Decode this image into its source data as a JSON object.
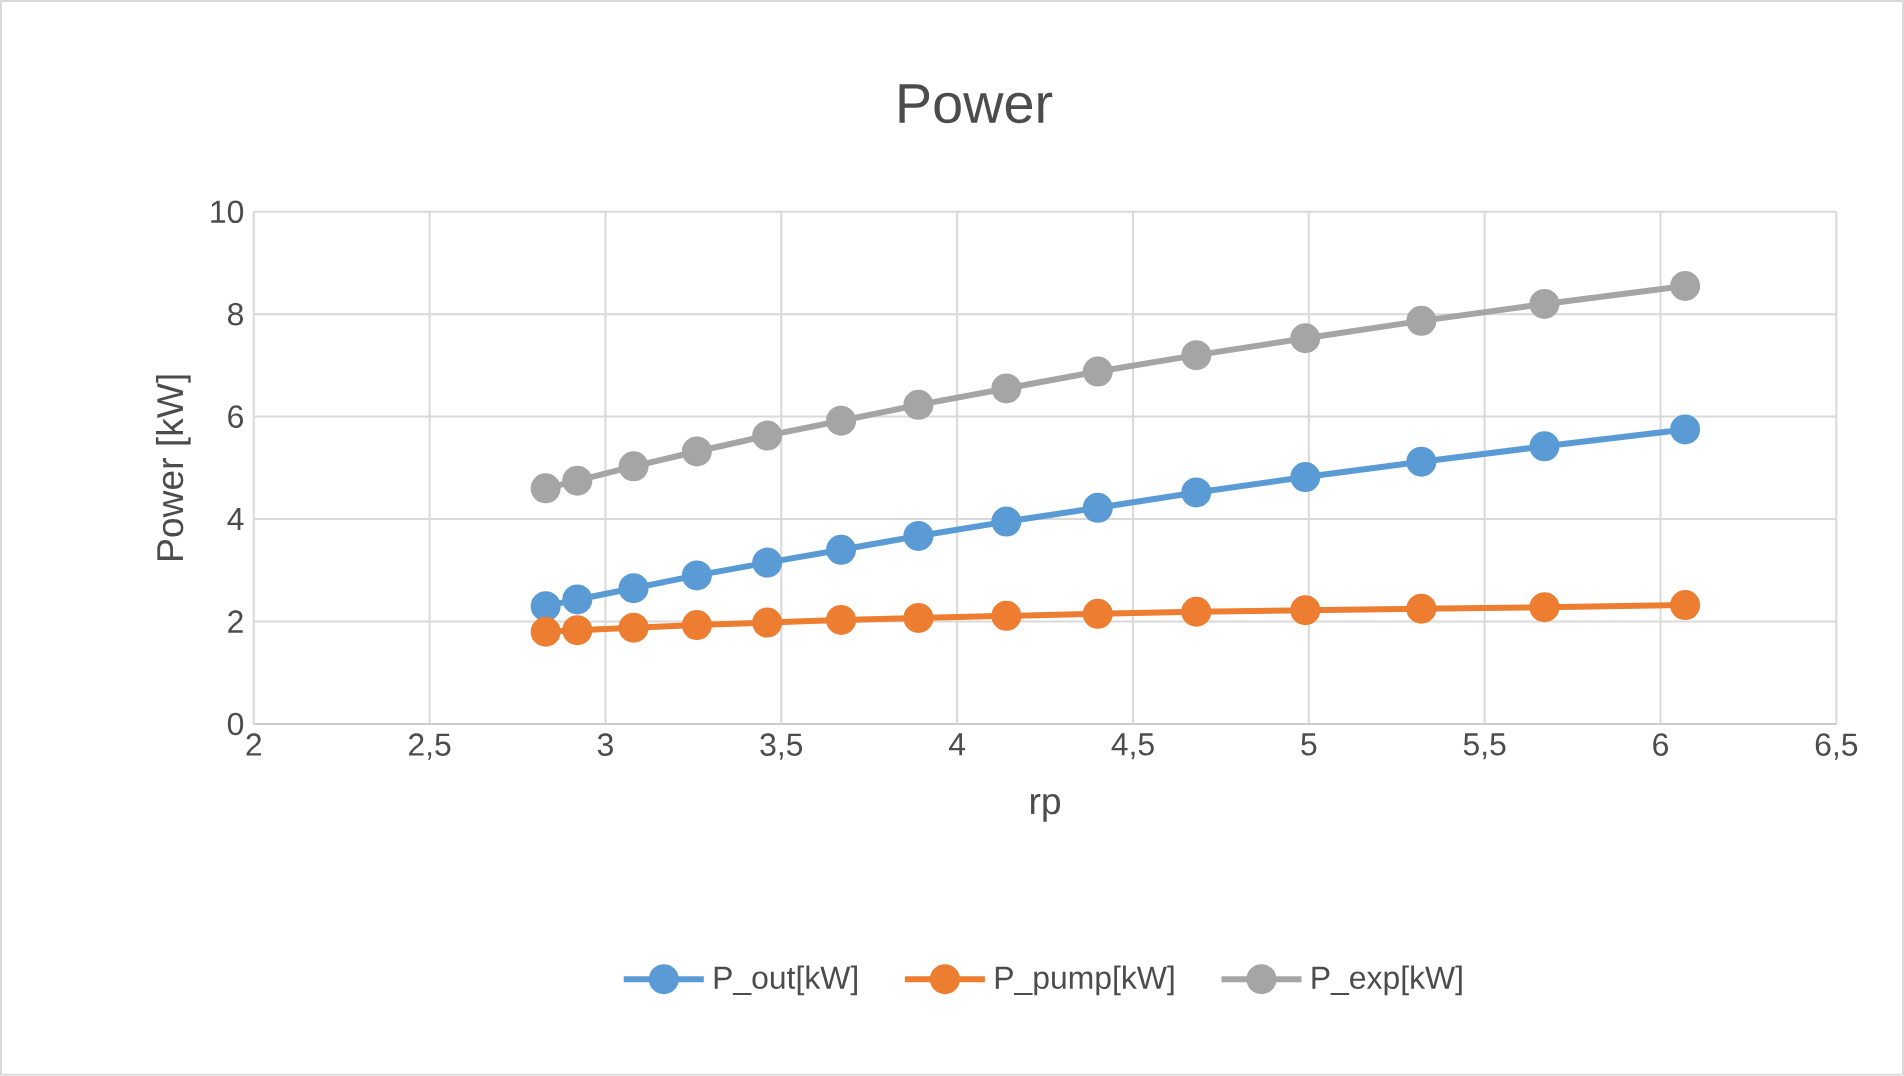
{
  "chart_data": {
    "type": "line",
    "title": "Power",
    "xlabel": "rp",
    "ylabel": "Power [kW]",
    "xlim": [
      2,
      6.5
    ],
    "xticks": [
      2,
      {
        "value": 2.5,
        "label": "2,5"
      },
      3,
      {
        "value": 3.5,
        "label": "3,5"
      },
      4,
      {
        "value": 4.5,
        "label": "4,5"
      },
      5,
      {
        "value": 5.5,
        "label": "5,5"
      },
      6,
      {
        "value": 6.5,
        "label": "6,5"
      }
    ],
    "ylim": [
      0,
      10
    ],
    "yticks": [
      0,
      2,
      4,
      6,
      8,
      10
    ],
    "x": [
      2.83,
      2.92,
      3.08,
      3.26,
      3.46,
      3.67,
      3.89,
      4.14,
      4.4,
      4.68,
      4.99,
      5.32,
      5.67,
      6.07
    ],
    "series": [
      {
        "name": "P_out[kW]",
        "color": "#5b9bd5",
        "values": [
          2.3,
          2.43,
          2.65,
          2.9,
          3.15,
          3.4,
          3.67,
          3.95,
          4.22,
          4.52,
          4.82,
          5.12,
          5.42,
          5.75
        ]
      },
      {
        "name": "P_pump[kW]",
        "color": "#ed7d31",
        "values": [
          1.8,
          1.83,
          1.88,
          1.93,
          1.98,
          2.03,
          2.07,
          2.11,
          2.15,
          2.19,
          2.22,
          2.25,
          2.28,
          2.32
        ]
      },
      {
        "name": "P_exp[kW]",
        "color": "#a5a5a5",
        "values": [
          4.6,
          4.75,
          5.03,
          5.32,
          5.63,
          5.92,
          6.23,
          6.55,
          6.88,
          7.2,
          7.53,
          7.87,
          8.2,
          8.55
        ]
      }
    ],
    "grid": true,
    "legend": "bottom",
    "marker": "circle",
    "line_style": "solid"
  }
}
